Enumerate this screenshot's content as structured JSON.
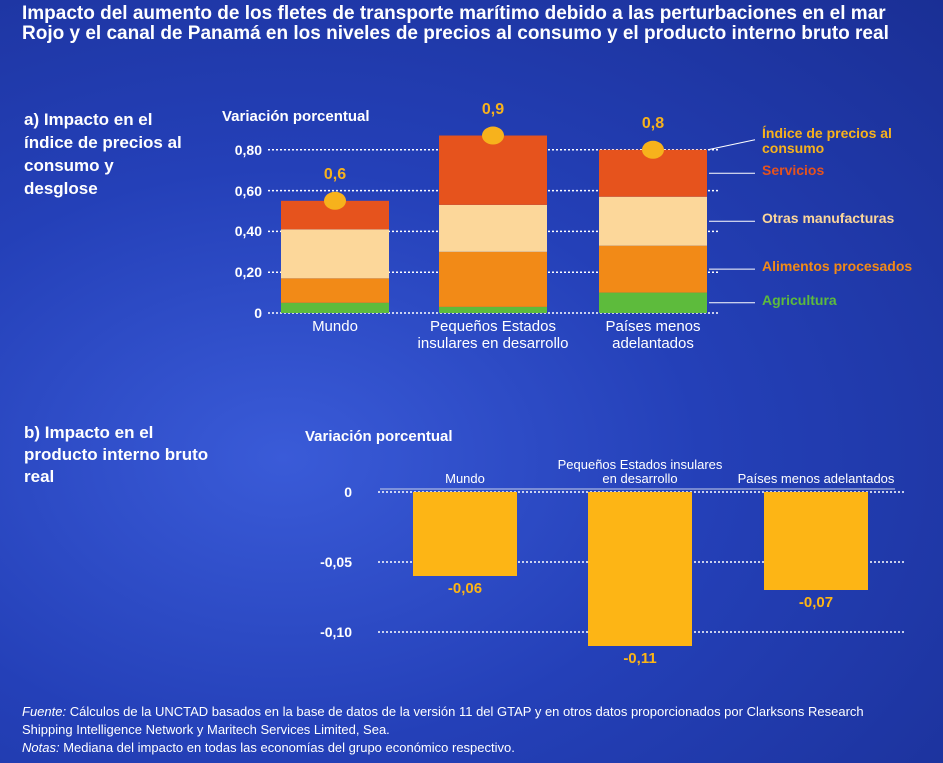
{
  "title": "Impacto del aumento de los fletes de transporte marítimo debido a las perturbaciones en el mar Rojo y el canal de Panamá en los niveles de precios al consumo y el producto interno bruto real",
  "chart_data": [
    {
      "type": "stacked_bar",
      "subtitle": "a) Impacto en el índice de precios al consumo y desglose",
      "y_label": "Variación porcentual",
      "categories": [
        "Mundo",
        "Pequeños Estados insulares en desarrollo",
        "Países menos adelantados"
      ],
      "series": [
        {
          "name": "Agricultura",
          "color": "#5dbb3c",
          "values": [
            0.05,
            0.03,
            0.1
          ]
        },
        {
          "name": "Alimentos procesados",
          "color": "#f28a17",
          "values": [
            0.12,
            0.27,
            0.23
          ]
        },
        {
          "name": "Otras manufacturas",
          "color": "#fcd79a",
          "values": [
            0.24,
            0.23,
            0.24
          ]
        },
        {
          "name": "Servicios",
          "color": "#e6531d",
          "values": [
            0.14,
            0.34,
            0.23
          ]
        }
      ],
      "markers": {
        "name": "Índice de precios al consumo",
        "color": "#f7b21c",
        "values": [
          0.55,
          0.87,
          0.8
        ],
        "value_labels": [
          "0,6",
          "0,9",
          "0,8"
        ]
      },
      "ylim": [
        0,
        0.9
      ],
      "yticks": [
        0,
        {
          "value": 0.2,
          "label": "0,20"
        },
        {
          "value": 0.4,
          "label": "0,40"
        },
        {
          "value": 0.6,
          "label": "0,60"
        },
        {
          "value": 0.8,
          "label": "0,80"
        }
      ],
      "grid": true
    },
    {
      "type": "bar",
      "subtitle": "b) Impacto en el producto interno bruto real",
      "y_label": "Variación porcentual",
      "categories": [
        "Mundo",
        "Pequeños Estados insulares en desarrollo",
        "Países menos adelantados"
      ],
      "values": [
        -0.06,
        -0.11,
        -0.07
      ],
      "value_labels": [
        "-0,06",
        "-0,11",
        "-0,07"
      ],
      "color": "#fdb515",
      "ylim": [
        -0.12,
        0
      ],
      "yticks": [
        0,
        {
          "value": -0.05,
          "label": "-0,05"
        },
        {
          "value": -0.1,
          "label": "-0,10"
        }
      ],
      "grid": true
    }
  ],
  "footnote": {
    "source_label": "Fuente:",
    "source_text": "Cálculos de la UNCTAD basados en la base de datos de la versión 11 del GTAP y en otros datos proporcionados por Clarksons Research Shipping Intelligence Network y Maritech Services Limited, Sea.",
    "notes_label": "Notas:",
    "notes_text": "Mediana del impacto en todas las economías del grupo económico respectivo."
  }
}
